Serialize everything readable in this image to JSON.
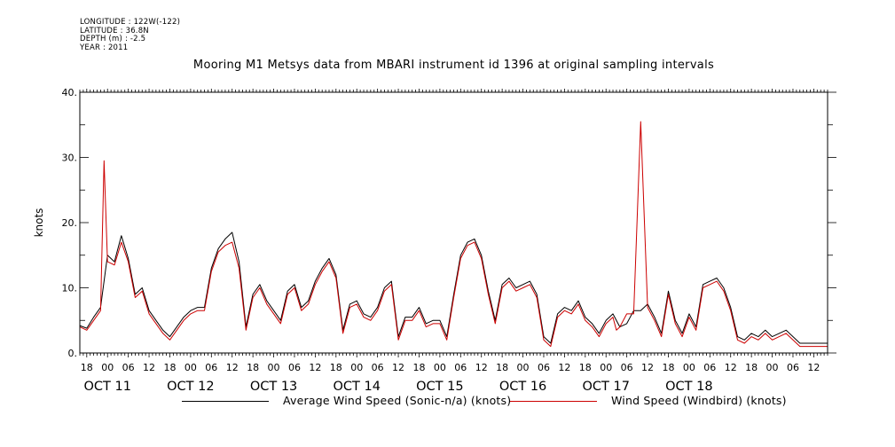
{
  "meta": {
    "longitude": "LONGITUDE : 122W(-122)",
    "latitude": "LATITUDE : 36.8N",
    "depth": "DEPTH (m) : -2.5",
    "year": "YEAR : 2011"
  },
  "chart_data": {
    "type": "line",
    "title": "Mooring M1 Metsys data from MBARI instrument id 1396 at original sampling intervals",
    "xlabel": "",
    "ylabel": "knots",
    "ylim": [
      0,
      40
    ],
    "yticks": [
      0,
      10,
      20,
      30,
      40
    ],
    "ytick_labels": [
      "0.",
      "10.",
      "20.",
      "30.",
      "40."
    ],
    "xlim_hours": [
      -8,
      208
    ],
    "x_tick_labels": [
      {
        "hour": -6,
        "label": "18"
      },
      {
        "hour": 0,
        "label": "00"
      },
      {
        "hour": 6,
        "label": "06"
      },
      {
        "hour": 12,
        "label": "12"
      },
      {
        "hour": 18,
        "label": "18"
      },
      {
        "hour": 24,
        "label": "00"
      },
      {
        "hour": 30,
        "label": "06"
      },
      {
        "hour": 36,
        "label": "12"
      },
      {
        "hour": 42,
        "label": "18"
      },
      {
        "hour": 48,
        "label": "00"
      },
      {
        "hour": 54,
        "label": "06"
      },
      {
        "hour": 60,
        "label": "12"
      },
      {
        "hour": 66,
        "label": "18"
      },
      {
        "hour": 72,
        "label": "00"
      },
      {
        "hour": 78,
        "label": "06"
      },
      {
        "hour": 84,
        "label": "12"
      },
      {
        "hour": 90,
        "label": "18"
      },
      {
        "hour": 96,
        "label": "00"
      },
      {
        "hour": 102,
        "label": "06"
      },
      {
        "hour": 108,
        "label": "12"
      },
      {
        "hour": 114,
        "label": "18"
      },
      {
        "hour": 120,
        "label": "00"
      },
      {
        "hour": 126,
        "label": "06"
      },
      {
        "hour": 132,
        "label": "12"
      },
      {
        "hour": 138,
        "label": "18"
      },
      {
        "hour": 144,
        "label": "00"
      },
      {
        "hour": 150,
        "label": "06"
      },
      {
        "hour": 156,
        "label": "12"
      },
      {
        "hour": 162,
        "label": "18"
      },
      {
        "hour": 168,
        "label": "00"
      },
      {
        "hour": 174,
        "label": "06"
      },
      {
        "hour": 180,
        "label": "12"
      },
      {
        "hour": 186,
        "label": "18"
      },
      {
        "hour": 192,
        "label": "00"
      },
      {
        "hour": 198,
        "label": "06"
      },
      {
        "hour": 204,
        "label": "12"
      }
    ],
    "date_labels": [
      {
        "hour": 0,
        "label": "OCT 11"
      },
      {
        "hour": 24,
        "label": "OCT 12"
      },
      {
        "hour": 48,
        "label": "OCT 13"
      },
      {
        "hour": 72,
        "label": "OCT 14"
      },
      {
        "hour": 96,
        "label": "OCT 15"
      },
      {
        "hour": 120,
        "label": "OCT 16"
      },
      {
        "hour": 144,
        "label": "OCT 17"
      },
      {
        "hour": 168,
        "label": "OCT 18"
      }
    ],
    "series": [
      {
        "name": "Average Wind Speed (Sonic-n/a) (knots)",
        "color": "#000000",
        "x_hours": [
          -8,
          -6,
          -4,
          -2,
          0,
          2,
          4,
          6,
          8,
          10,
          12,
          14,
          16,
          18,
          20,
          22,
          24,
          26,
          28,
          30,
          32,
          34,
          36,
          38,
          40,
          42,
          44,
          46,
          48,
          50,
          52,
          54,
          56,
          58,
          60,
          62,
          64,
          66,
          68,
          70,
          72,
          74,
          76,
          78,
          80,
          82,
          84,
          86,
          88,
          90,
          92,
          94,
          96,
          98,
          100,
          102,
          104,
          106,
          108,
          110,
          112,
          114,
          116,
          118,
          120,
          122,
          124,
          126,
          128,
          130,
          132,
          134,
          136,
          138,
          140,
          142,
          144,
          146,
          148,
          150,
          152,
          154,
          156,
          158,
          160,
          162,
          164,
          166,
          168,
          170,
          172,
          174,
          176,
          178,
          180,
          182,
          184,
          186,
          188,
          190,
          192,
          194,
          196,
          198,
          200,
          202,
          204,
          206,
          208
        ],
        "values": [
          4.2,
          3.8,
          5.5,
          7.0,
          15.0,
          14.0,
          18.0,
          14.5,
          9.0,
          10.0,
          6.5,
          5.0,
          3.5,
          2.5,
          4.0,
          5.5,
          6.5,
          7.0,
          7.0,
          13.0,
          16.0,
          17.5,
          18.5,
          14.0,
          4.0,
          9.0,
          10.5,
          8.0,
          6.5,
          5.0,
          9.5,
          10.5,
          7.0,
          8.0,
          11.0,
          13.0,
          14.5,
          12.0,
          3.5,
          7.5,
          8.0,
          6.0,
          5.5,
          7.0,
          10.0,
          11.0,
          2.5,
          5.5,
          5.5,
          7.0,
          4.5,
          5.0,
          5.0,
          2.5,
          9.0,
          15.0,
          17.0,
          17.5,
          15.0,
          9.5,
          5.0,
          10.5,
          11.5,
          10.0,
          10.5,
          11.0,
          9.0,
          2.5,
          1.5,
          6.0,
          7.0,
          6.5,
          8.0,
          5.5,
          4.5,
          3.0,
          5.0,
          6.0,
          4.0,
          4.5,
          6.5,
          6.5,
          7.5,
          5.5,
          3.0,
          9.5,
          5.0,
          3.0,
          6.0,
          4.0,
          10.5,
          11.0,
          11.5,
          10.0,
          7.0,
          2.5,
          2.0,
          3.0,
          2.5,
          3.5,
          2.5,
          3.0,
          3.5,
          2.5,
          1.5,
          1.5,
          1.5,
          1.5,
          1.5
        ]
      },
      {
        "name": "Wind Speed (Windbird) (knots)",
        "color": "#cc0000",
        "x_hours": [
          -8,
          -6,
          -4,
          -2,
          -1,
          0,
          2,
          4,
          6,
          8,
          10,
          12,
          14,
          16,
          18,
          20,
          22,
          24,
          26,
          28,
          30,
          32,
          34,
          36,
          38,
          40,
          42,
          44,
          46,
          48,
          50,
          52,
          54,
          56,
          58,
          60,
          62,
          64,
          66,
          68,
          70,
          72,
          74,
          76,
          78,
          80,
          82,
          84,
          86,
          88,
          90,
          92,
          94,
          96,
          98,
          100,
          102,
          104,
          106,
          108,
          110,
          112,
          114,
          116,
          118,
          120,
          122,
          124,
          126,
          128,
          130,
          132,
          134,
          136,
          138,
          140,
          142,
          144,
          146,
          147,
          148,
          150,
          152,
          154,
          156,
          158,
          160,
          162,
          164,
          166,
          168,
          170,
          172,
          174,
          176,
          178,
          180,
          182,
          184,
          186,
          188,
          190,
          192,
          194,
          196,
          198,
          200,
          202,
          204,
          206,
          208
        ],
        "values": [
          4.0,
          3.5,
          5.0,
          6.5,
          29.5,
          14.0,
          13.5,
          17.0,
          14.0,
          8.5,
          9.5,
          6.0,
          4.5,
          3.0,
          2.0,
          3.5,
          5.0,
          6.0,
          6.5,
          6.5,
          12.5,
          15.5,
          16.5,
          17.0,
          13.0,
          3.5,
          8.5,
          10.0,
          7.5,
          6.0,
          4.5,
          9.0,
          10.0,
          6.5,
          7.5,
          10.5,
          12.5,
          14.0,
          11.5,
          3.0,
          7.0,
          7.5,
          5.5,
          5.0,
          6.5,
          9.5,
          10.5,
          2.0,
          5.0,
          5.0,
          6.5,
          4.0,
          4.5,
          4.5,
          2.0,
          8.5,
          14.5,
          16.5,
          17.0,
          14.5,
          9.0,
          4.5,
          10.0,
          11.0,
          9.5,
          10.0,
          10.5,
          8.5,
          2.0,
          1.0,
          5.5,
          6.5,
          6.0,
          7.5,
          5.0,
          4.0,
          2.5,
          4.5,
          5.5,
          3.5,
          4.0,
          6.0,
          6.0,
          35.5,
          7.0,
          5.0,
          2.5,
          9.0,
          4.5,
          2.5,
          5.5,
          3.5,
          10.0,
          10.5,
          11.0,
          9.5,
          6.5,
          2.0,
          1.5,
          2.5,
          2.0,
          3.0,
          2.0,
          2.5,
          3.0,
          2.0,
          1.0,
          1.0,
          1.0,
          1.0,
          1.0
        ]
      }
    ]
  }
}
